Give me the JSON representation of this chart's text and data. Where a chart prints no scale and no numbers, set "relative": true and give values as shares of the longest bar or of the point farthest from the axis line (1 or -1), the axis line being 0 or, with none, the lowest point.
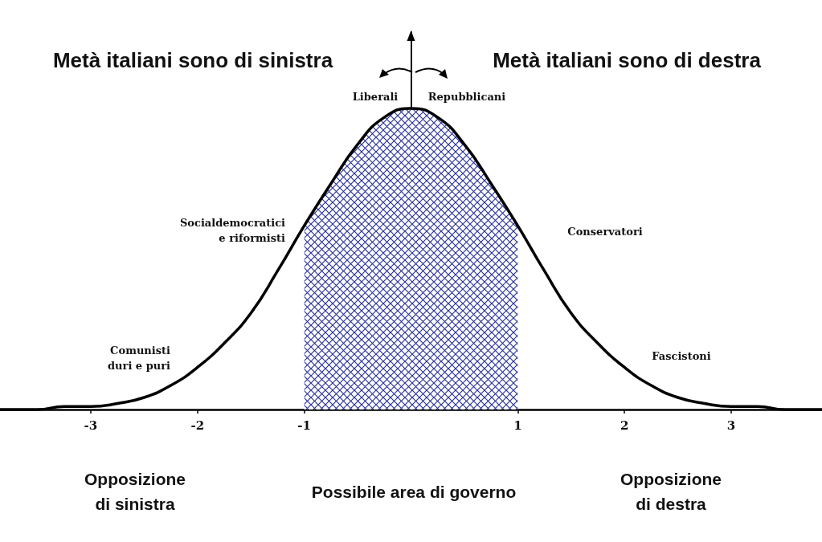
{
  "chart_data": {
    "type": "line",
    "relative": true,
    "x": [
      -3.85,
      -3.5,
      -3.25,
      -3,
      -2.75,
      -2.5,
      -2.25,
      -2,
      -1.75,
      -1.5,
      -1.25,
      -1,
      -0.75,
      -0.5,
      -0.25,
      0,
      0.25,
      0.5,
      0.75,
      1,
      1.25,
      1.5,
      1.75,
      2,
      2.25,
      2.5,
      2.75,
      3,
      3.25,
      3.5,
      3.85
    ],
    "series": [
      {
        "color": "#000000",
        "values": [
          0,
          0,
          0.01,
          0.01,
          0.02,
          0.04,
          0.08,
          0.14,
          0.22,
          0.32,
          0.46,
          0.61,
          0.75,
          0.88,
          0.97,
          1,
          0.97,
          0.88,
          0.75,
          0.61,
          0.46,
          0.32,
          0.22,
          0.14,
          0.08,
          0.04,
          0.02,
          0.01,
          0.01,
          0,
          0
        ]
      }
    ],
    "xlim": [
      -3.85,
      3.85
    ],
    "xticks": [
      -3,
      -2,
      -1,
      1,
      2,
      3
    ],
    "marker": "none",
    "line_style": "solid",
    "bands": [
      {
        "axis": "x",
        "from": -1,
        "to": 1,
        "color": "#2b3399"
      }
    ],
    "annotations": [
      "Metà italiani sono di sinistra",
      "Metà italiani sono di destra",
      "Liberali",
      "Repubblicani",
      "Socialdemocratici\ne riformisti",
      "Conservatori",
      "Comunisti\nduri e puri",
      "Fascistoni",
      "Opposizione\ndi sinistra",
      "Possibile area di governo",
      "Opposizione\ndi destra"
    ]
  }
}
